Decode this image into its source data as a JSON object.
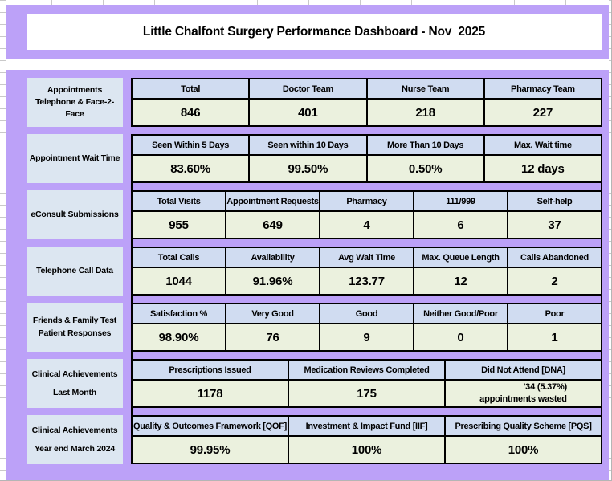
{
  "title": "Little Chalfont Surgery Performance Dashboard - Nov  2025",
  "colors": {
    "background_purple": "#bca1f8",
    "label_bg": "#dce6f1",
    "header_bg": "#d0dcf1",
    "value_bg": "#ebf1de",
    "border": "#000000"
  },
  "sections": [
    {
      "id": "appointments",
      "label_lines": [
        "Appointments",
        "Telephone & Face-2-Face"
      ],
      "spread": false,
      "columns": [
        {
          "header": "Total",
          "value": "846"
        },
        {
          "header": "Doctor Team",
          "value": "401"
        },
        {
          "header": "Nurse Team",
          "value": "218"
        },
        {
          "header": "Pharmacy Team",
          "value": "227"
        }
      ]
    },
    {
      "id": "appointment-wait-time",
      "label_lines": [
        "Appointment Wait Time"
      ],
      "spread": false,
      "columns": [
        {
          "header": "Seen Within 5 Days",
          "value": "83.60%"
        },
        {
          "header": "Seen within 10 Days",
          "value": "99.50%"
        },
        {
          "header": "More Than 10 Days",
          "value": "0.50%"
        },
        {
          "header": "Max. Wait time",
          "value": "12 days"
        }
      ]
    },
    {
      "id": "econsult-submissions",
      "label_lines": [
        "eConsult Submissions"
      ],
      "spread": false,
      "columns": [
        {
          "header": "Total Visits",
          "value": "955"
        },
        {
          "header": "Appointment Requests",
          "value": "649"
        },
        {
          "header": "Pharmacy",
          "value": "4"
        },
        {
          "header": "111/999",
          "value": "6"
        },
        {
          "header": "Self-help",
          "value": "37"
        }
      ]
    },
    {
      "id": "telephone-call-data",
      "label_lines": [
        "Telephone Call Data"
      ],
      "spread": false,
      "columns": [
        {
          "header": "Total Calls",
          "value": "1044"
        },
        {
          "header": "Availability",
          "value": "91.96%"
        },
        {
          "header": "Avg Wait Time",
          "value": "123.77"
        },
        {
          "header": "Max. Queue Length",
          "value": "12"
        },
        {
          "header": "Calls Abandoned",
          "value": "2"
        }
      ]
    },
    {
      "id": "friends-family-test",
      "label_lines": [
        "Friends & Family Test",
        "Patient Responses"
      ],
      "spread": false,
      "columns": [
        {
          "header": "Satisfaction %",
          "value": "98.90%"
        },
        {
          "header": "Very Good",
          "value": "76"
        },
        {
          "header": "Good",
          "value": "9"
        },
        {
          "header": "Neither Good/Poor",
          "value": "0"
        },
        {
          "header": "Poor",
          "value": "1"
        }
      ]
    },
    {
      "id": "clinical-achievements-last-month",
      "label_lines": [
        "Clinical Achievements",
        "Last Month"
      ],
      "spread": true,
      "columns": [
        {
          "header": "Prescriptions Issued",
          "value": "1178"
        },
        {
          "header": "Medication Reviews Completed",
          "value": "175"
        },
        {
          "header": "Did Not Attend [DNA]",
          "value": "'34 (5.37%)",
          "value2": "appointments wasted"
        }
      ]
    },
    {
      "id": "clinical-achievements-year-end",
      "label_lines": [
        "Clinical Achievements",
        "Year end March 2024"
      ],
      "spread": true,
      "columns": [
        {
          "header": "Quality & Outcomes Framework [QOF]",
          "value": "99.95%"
        },
        {
          "header": "Investment & Impact Fund [IIF]",
          "value": "100%"
        },
        {
          "header": "Prescribing Quality Scheme [PQS]",
          "value": "100%"
        }
      ]
    }
  ]
}
